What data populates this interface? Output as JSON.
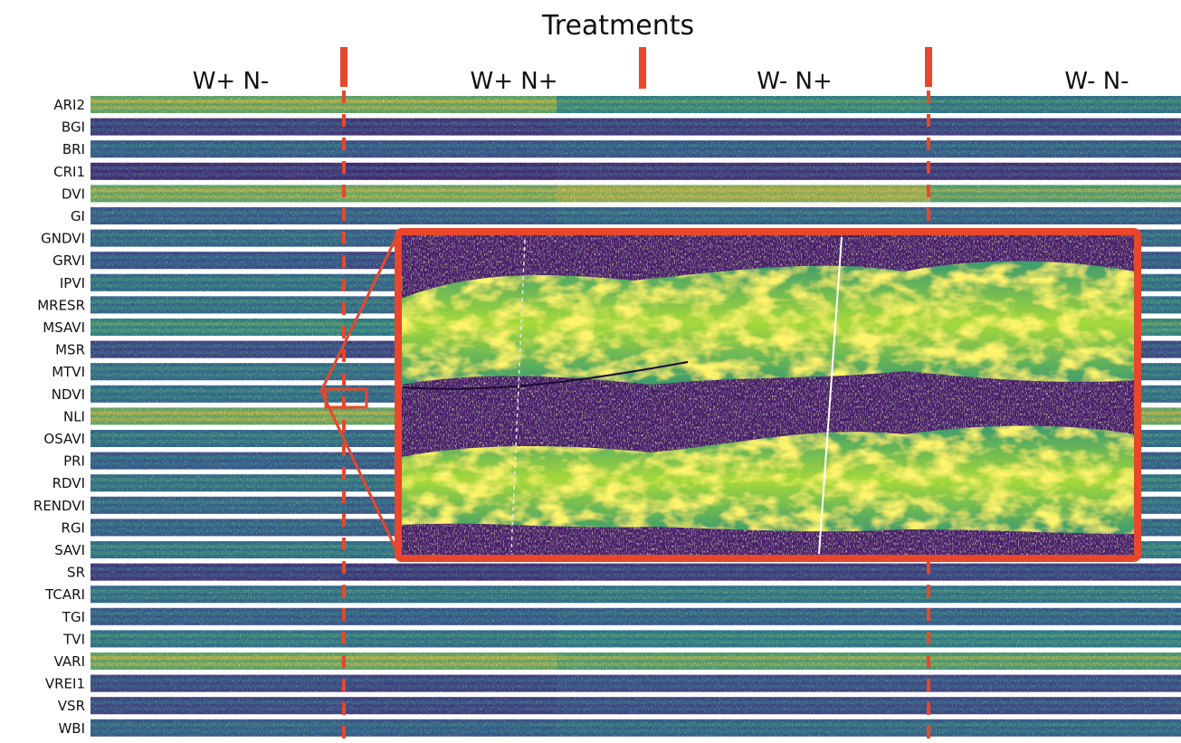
{
  "title": "Treatments",
  "treatments": [
    "W+ N-",
    "W+ N+",
    "W- N+",
    "W- N-"
  ],
  "indices": [
    "ARI2",
    "BGI",
    "BRI",
    "CRI1",
    "DVI",
    "GI",
    "GNDVI",
    "GRVI",
    "IPVI",
    "MRESR",
    "MSAVI",
    "MSR",
    "MTVI",
    "NDVI",
    "NLI",
    "OSAVI",
    "PRI",
    "RDVI",
    "RENDVI",
    "RGI",
    "SAVI",
    "SR",
    "TCARI",
    "TGI",
    "TVI",
    "VARI",
    "VREI1",
    "VSR",
    "WBI"
  ],
  "zoom_source_index": "NDVI",
  "colors": {
    "accent": "#e8472b",
    "viridis_low": "#440154",
    "viridis_mid": "#21918c",
    "viridis_high": "#fde725"
  },
  "strip_levels": {
    "ARI2": [
      0.78,
      0.78,
      0.55,
      0.45
    ],
    "BGI": [
      0.15,
      0.12,
      0.15,
      0.18
    ],
    "BRI": [
      0.3,
      0.25,
      0.28,
      0.3
    ],
    "CRI1": [
      0.1,
      0.08,
      0.12,
      0.12
    ],
    "DVI": [
      0.78,
      0.8,
      0.88,
      0.72
    ],
    "GI": [
      0.3,
      0.3,
      0.35,
      0.32
    ],
    "GNDVI": [
      0.35,
      0.3,
      0.32,
      0.35
    ],
    "GRVI": [
      0.25,
      0.2,
      0.25,
      0.28
    ],
    "IPVI": [
      0.4,
      0.35,
      0.38,
      0.4
    ],
    "MRESR": [
      0.4,
      0.38,
      0.4,
      0.42
    ],
    "MSAVI": [
      0.55,
      0.5,
      0.55,
      0.58
    ],
    "MSR": [
      0.2,
      0.18,
      0.22,
      0.22
    ],
    "MTVI": [
      0.4,
      0.38,
      0.42,
      0.42
    ],
    "NDVI": [
      0.4,
      0.35,
      0.38,
      0.4
    ],
    "NLI": [
      0.8,
      0.78,
      0.8,
      0.8
    ],
    "OSAVI": [
      0.4,
      0.35,
      0.38,
      0.4
    ],
    "PRI": [
      0.3,
      0.28,
      0.3,
      0.32
    ],
    "RDVI": [
      0.42,
      0.4,
      0.42,
      0.45
    ],
    "RENDVI": [
      0.35,
      0.3,
      0.35,
      0.38
    ],
    "RGI": [
      0.32,
      0.3,
      0.32,
      0.35
    ],
    "SAVI": [
      0.45,
      0.42,
      0.45,
      0.48
    ],
    "SR": [
      0.15,
      0.12,
      0.15,
      0.18
    ],
    "TCARI": [
      0.4,
      0.42,
      0.45,
      0.45
    ],
    "TGI": [
      0.3,
      0.28,
      0.32,
      0.32
    ],
    "TVI": [
      0.45,
      0.42,
      0.48,
      0.5
    ],
    "VARI": [
      0.78,
      0.8,
      0.72,
      0.7
    ],
    "VREI1": [
      0.2,
      0.18,
      0.22,
      0.22
    ],
    "VSR": [
      0.2,
      0.18,
      0.22,
      0.22
    ],
    "WBI": [
      0.32,
      0.3,
      0.35,
      0.35
    ]
  }
}
